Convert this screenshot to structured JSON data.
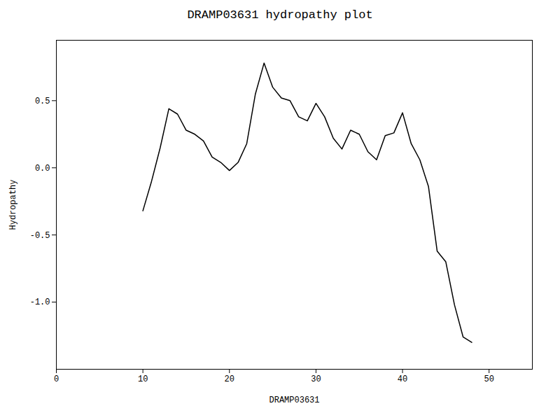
{
  "chart_data": {
    "type": "line",
    "title": "DRAMP03631 hydropathy plot",
    "xlabel": "DRAMP03631",
    "ylabel": "Hydropathy",
    "x": [
      10,
      11,
      12,
      13,
      14,
      15,
      16,
      17,
      18,
      19,
      20,
      21,
      22,
      23,
      24,
      25,
      26,
      27,
      28,
      29,
      30,
      31,
      32,
      33,
      34,
      35,
      36,
      37,
      38,
      39,
      40,
      41,
      42,
      43,
      44,
      45,
      46,
      47,
      48
    ],
    "values": [
      -0.32,
      -0.1,
      0.15,
      0.44,
      0.4,
      0.28,
      0.25,
      0.2,
      0.08,
      0.04,
      -0.02,
      0.04,
      0.18,
      0.55,
      0.78,
      0.6,
      0.52,
      0.5,
      0.38,
      0.35,
      0.48,
      0.38,
      0.22,
      0.14,
      0.28,
      0.25,
      0.12,
      0.06,
      0.24,
      0.26,
      0.41,
      0.18,
      0.06,
      -0.14,
      -0.62,
      -0.7,
      -1.02,
      -1.26,
      -1.3
    ],
    "color": "#000000",
    "xlim": [
      0,
      55
    ],
    "ylim": [
      -1.5,
      0.95
    ],
    "xticks": [
      0,
      10,
      20,
      30,
      40,
      50
    ],
    "yticks": [
      {
        "value": -1.0,
        "label": "-1.0"
      },
      -0.5,
      {
        "value": 0.0,
        "label": "0.0"
      },
      0.5
    ],
    "grid": false
  }
}
